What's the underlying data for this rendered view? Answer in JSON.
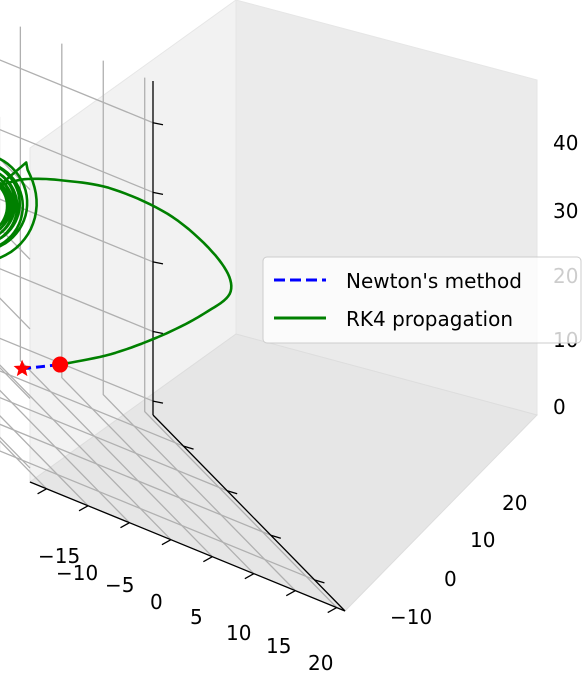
{
  "chart_data": {
    "type": "line",
    "projection": "3d",
    "title": "",
    "xlabel": "",
    "ylabel": "",
    "zlabel": "",
    "x_ticks": [
      "−15",
      "−10",
      "−5",
      "0",
      "5",
      "10",
      "15",
      "20"
    ],
    "y_ticks": [
      "−10",
      "0",
      "10",
      "20"
    ],
    "z_ticks": [
      "0",
      "10",
      "20",
      "30",
      "40"
    ],
    "xlim": [
      -17,
      21
    ],
    "ylim": [
      -17,
      27
    ],
    "zlim": [
      -2,
      46
    ],
    "grid": true,
    "legend": {
      "placement": "center-right",
      "entries": [
        {
          "label": "Newton's method",
          "style": "dashed",
          "color": "#0000ff"
        },
        {
          "label": "RK4 propagation",
          "style": "solid",
          "color": "#008000"
        }
      ]
    },
    "markers": [
      {
        "name": "start",
        "shape": "star",
        "color": "#ff0000",
        "x": 1,
        "y": -9,
        "z": 0
      },
      {
        "name": "end",
        "shape": "circle",
        "color": "#ff0000",
        "x": 4,
        "y": -6,
        "z": 4
      }
    ],
    "series": [
      {
        "name": "Newton's method",
        "style": "dashed",
        "color": "#0000ff",
        "points": [
          [
            1,
            -9,
            0
          ],
          [
            2.5,
            -7.5,
            2
          ],
          [
            4,
            -6,
            4
          ]
        ]
      },
      {
        "name": "RK4 propagation",
        "style": "solid",
        "color": "#008000",
        "curve": "lorenz-attractor-wing",
        "transit_path": [
          [
            4,
            -6,
            4
          ],
          [
            8,
            -2,
            10
          ],
          [
            11,
            4,
            18
          ],
          [
            13,
            10,
            26
          ],
          [
            13,
            16,
            33
          ],
          [
            10,
            19,
            38
          ],
          [
            5,
            18,
            41
          ],
          [
            0,
            14,
            40
          ],
          [
            -3,
            8,
            36
          ],
          [
            -5,
            3,
            32
          ],
          [
            -6,
            -1,
            28
          ]
        ],
        "spiral": {
          "center": [
            -6,
            -6,
            22
          ],
          "outer_radius": 7,
          "inner_radius": 3,
          "turns": 11,
          "end": [
            -8,
            -2,
            30
          ]
        }
      }
    ]
  }
}
